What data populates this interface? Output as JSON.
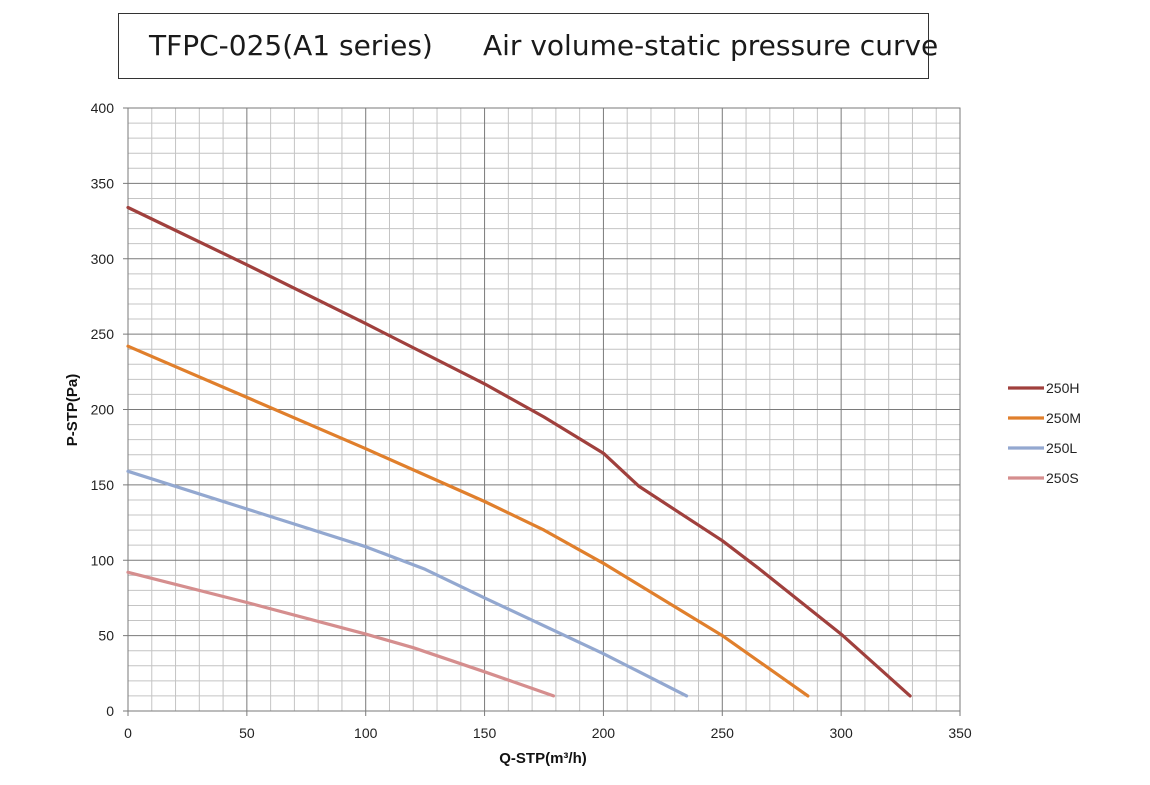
{
  "header": {
    "model": "TFPC-025(A1 series)",
    "subtitle": "Air volume-static pressure curve"
  },
  "chart_data": {
    "type": "line",
    "xlabel": "Q-STP(m³/h)",
    "ylabel": "P-STP(Pa)",
    "xlim": [
      0,
      350
    ],
    "ylim": [
      0,
      400
    ],
    "xticks": [
      0,
      50,
      100,
      150,
      200,
      250,
      300,
      350
    ],
    "yticks": [
      0,
      50,
      100,
      150,
      200,
      250,
      300,
      350,
      400
    ],
    "x_minor_step": 10,
    "y_minor_step": 10,
    "grid": true,
    "legend_position": "right",
    "series": [
      {
        "name": "250H",
        "color": "#a0403d",
        "points": [
          [
            0,
            334
          ],
          [
            50,
            296
          ],
          [
            100,
            257
          ],
          [
            150,
            217
          ],
          [
            175,
            195
          ],
          [
            200,
            171
          ],
          [
            215,
            149
          ],
          [
            250,
            113
          ],
          [
            265,
            95
          ],
          [
            300,
            51
          ],
          [
            329,
            10
          ]
        ]
      },
      {
        "name": "250M",
        "color": "#e07f2c",
        "points": [
          [
            0,
            242
          ],
          [
            50,
            208
          ],
          [
            100,
            174
          ],
          [
            150,
            139
          ],
          [
            175,
            120
          ],
          [
            200,
            98
          ],
          [
            250,
            50
          ],
          [
            286,
            10
          ]
        ]
      },
      {
        "name": "250L",
        "color": "#93a8d0",
        "points": [
          [
            0,
            159
          ],
          [
            50,
            134
          ],
          [
            100,
            109
          ],
          [
            125,
            94
          ],
          [
            150,
            75
          ],
          [
            200,
            38
          ],
          [
            235,
            10
          ]
        ]
      },
      {
        "name": "250S",
        "color": "#d58e8e",
        "points": [
          [
            0,
            92
          ],
          [
            50,
            72
          ],
          [
            100,
            51
          ],
          [
            120,
            42
          ],
          [
            150,
            26
          ],
          [
            179,
            10
          ]
        ]
      }
    ]
  }
}
